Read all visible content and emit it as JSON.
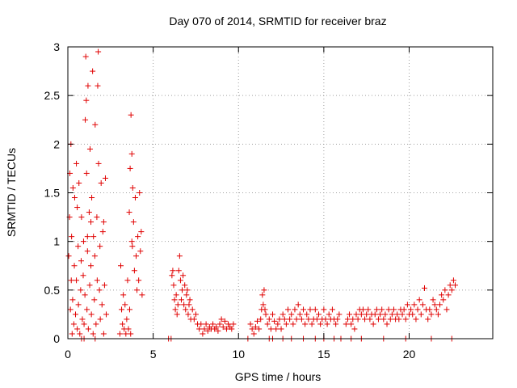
{
  "chart_data": {
    "type": "scatter",
    "title": "Day 070 of 2014, SRMTID for receiver braz",
    "xlabel": "GPS time / hours",
    "ylabel": "SRMTID / TECUs",
    "xlim": [
      0,
      24.9
    ],
    "ylim": [
      0,
      3
    ],
    "xticks": [
      0,
      5,
      10,
      15,
      20
    ],
    "yticks": [
      0,
      0.5,
      1,
      1.5,
      2,
      2.5,
      3
    ],
    "grid": true,
    "marker": "plus",
    "color": "#e00000",
    "series": [
      {
        "name": "SRMTID",
        "points": [
          [
            0.05,
            0.85
          ],
          [
            0.1,
            1.25
          ],
          [
            0.12,
            1.7
          ],
          [
            0.15,
            0.3
          ],
          [
            0.18,
            2.0
          ],
          [
            0.2,
            0.6
          ],
          [
            0.22,
            1.05
          ],
          [
            0.25,
            0.05
          ],
          [
            0.28,
            0.4
          ],
          [
            0.3,
            1.55
          ],
          [
            0.35,
            0.15
          ],
          [
            0.38,
            0.75
          ],
          [
            0.4,
            1.45
          ],
          [
            0.45,
            0.25
          ],
          [
            0.5,
            0.6
          ],
          [
            0.5,
            1.8
          ],
          [
            0.55,
            0.1
          ],
          [
            0.6,
            0.95
          ],
          [
            0.62,
            0.35
          ],
          [
            0.65,
            1.6
          ],
          [
            0.7,
            0.05
          ],
          [
            0.75,
            0.5
          ],
          [
            0.78,
            0.8
          ],
          [
            0.8,
            1.25
          ],
          [
            0.85,
            0.2
          ],
          [
            0.9,
            0.65
          ],
          [
            0.92,
            1.0
          ],
          [
            0.95,
            0.15
          ],
          [
            1.0,
            0.45
          ],
          [
            1.02,
            2.25
          ],
          [
            1.05,
            2.9
          ],
          [
            1.08,
            2.45
          ],
          [
            1.1,
            1.7
          ],
          [
            1.12,
            0.3
          ],
          [
            1.15,
            0.9
          ],
          [
            1.18,
            2.6
          ],
          [
            1.2,
            0.1
          ],
          [
            1.25,
            1.3
          ],
          [
            1.28,
            0.55
          ],
          [
            1.3,
            1.95
          ],
          [
            1.35,
            0.75
          ],
          [
            1.38,
            0.25
          ],
          [
            1.4,
            1.45
          ],
          [
            1.45,
            2.75
          ],
          [
            1.48,
            0.05
          ],
          [
            1.5,
            1.05
          ],
          [
            1.55,
            0.4
          ],
          [
            1.58,
            0.85
          ],
          [
            1.6,
            2.2
          ],
          [
            1.65,
            0.15
          ],
          [
            1.7,
            1.25
          ],
          [
            1.72,
            0.6
          ],
          [
            1.75,
            2.6
          ],
          [
            1.78,
            2.95
          ],
          [
            1.8,
            1.8
          ],
          [
            1.85,
            0.5
          ],
          [
            1.88,
            0.95
          ],
          [
            1.9,
            0.2
          ],
          [
            1.95,
            1.6
          ],
          [
            2.0,
            0.35
          ],
          [
            2.05,
            1.1
          ],
          [
            2.1,
            0.05
          ],
          [
            2.15,
            0.55
          ],
          [
            2.2,
            1.65
          ],
          [
            2.25,
            0.25
          ],
          [
            3.05,
            0.05
          ],
          [
            3.1,
            0.75
          ],
          [
            3.15,
            0.3
          ],
          [
            3.2,
            0.15
          ],
          [
            3.25,
            0.45
          ],
          [
            3.3,
            0.1
          ],
          [
            3.35,
            0.35
          ],
          [
            3.4,
            0.05
          ],
          [
            3.45,
            0.2
          ],
          [
            3.5,
            0.6
          ],
          [
            3.55,
            0.1
          ],
          [
            3.6,
            1.3
          ],
          [
            3.62,
            0.3
          ],
          [
            3.65,
            1.75
          ],
          [
            3.68,
            0.05
          ],
          [
            3.7,
            2.3
          ],
          [
            3.75,
            1.9
          ],
          [
            3.78,
            0.95
          ],
          [
            3.8,
            1.55
          ],
          [
            3.85,
            1.2
          ],
          [
            3.9,
            0.7
          ],
          [
            3.95,
            1.45
          ],
          [
            4.0,
            0.85
          ],
          [
            4.05,
            0.5
          ],
          [
            4.1,
            1.05
          ],
          [
            4.15,
            0.6
          ],
          [
            4.2,
            1.5
          ],
          [
            4.25,
            0.9
          ],
          [
            4.3,
            1.1
          ],
          [
            4.35,
            0.45
          ],
          [
            5.9,
            0.0
          ],
          [
            6.05,
            0.0
          ],
          [
            6.1,
            0.65
          ],
          [
            6.15,
            0.7
          ],
          [
            6.2,
            0.55
          ],
          [
            6.25,
            0.4
          ],
          [
            6.3,
            0.3
          ],
          [
            6.35,
            0.45
          ],
          [
            6.4,
            0.25
          ],
          [
            6.45,
            0.35
          ],
          [
            6.5,
            0.7
          ],
          [
            6.55,
            0.85
          ],
          [
            6.6,
            0.6
          ],
          [
            6.65,
            0.4
          ],
          [
            6.7,
            0.5
          ],
          [
            6.75,
            0.65
          ],
          [
            6.8,
            0.35
          ],
          [
            6.85,
            0.55
          ],
          [
            6.9,
            0.3
          ],
          [
            6.95,
            0.45
          ],
          [
            7.0,
            0.5
          ],
          [
            7.05,
            0.25
          ],
          [
            7.1,
            0.35
          ],
          [
            7.15,
            0.4
          ],
          [
            7.2,
            0.2
          ],
          [
            7.3,
            0.3
          ],
          [
            7.4,
            0.2
          ],
          [
            7.5,
            0.25
          ],
          [
            7.6,
            0.15
          ],
          [
            7.7,
            0.1
          ],
          [
            7.8,
            0.15
          ],
          [
            7.9,
            0.05
          ],
          [
            8.0,
            0.1
          ],
          [
            8.1,
            0.15
          ],
          [
            8.2,
            0.08
          ],
          [
            8.3,
            0.12
          ],
          [
            8.4,
            0.1
          ],
          [
            8.5,
            0.15
          ],
          [
            8.6,
            0.1
          ],
          [
            8.7,
            0.12
          ],
          [
            8.8,
            0.08
          ],
          [
            8.9,
            0.15
          ],
          [
            9.0,
            0.2
          ],
          [
            9.1,
            0.12
          ],
          [
            9.2,
            0.18
          ],
          [
            9.3,
            0.1
          ],
          [
            9.4,
            0.15
          ],
          [
            9.5,
            0.12
          ],
          [
            9.6,
            0.1
          ],
          [
            9.7,
            0.15
          ],
          [
            10.55,
            0.0
          ],
          [
            10.7,
            0.15
          ],
          [
            10.8,
            0.1
          ],
          [
            10.9,
            0.05
          ],
          [
            11.0,
            0.12
          ],
          [
            11.1,
            0.18
          ],
          [
            11.2,
            0.1
          ],
          [
            11.3,
            0.2
          ],
          [
            11.35,
            0.3
          ],
          [
            11.4,
            0.45
          ],
          [
            11.45,
            0.35
          ],
          [
            11.5,
            0.5
          ],
          [
            11.55,
            0.3
          ],
          [
            11.6,
            0.25
          ],
          [
            11.7,
            0.15
          ],
          [
            11.8,
            0.2
          ],
          [
            11.9,
            0.1
          ],
          [
            12.0,
            0.25
          ],
          [
            12.1,
            0.18
          ],
          [
            12.2,
            0.1
          ],
          [
            12.3,
            0.15
          ],
          [
            12.4,
            0.2
          ],
          [
            12.5,
            0.1
          ],
          [
            12.6,
            0.25
          ],
          [
            12.7,
            0.2
          ],
          [
            12.8,
            0.15
          ],
          [
            12.9,
            0.3
          ],
          [
            13.0,
            0.2
          ],
          [
            13.1,
            0.25
          ],
          [
            13.2,
            0.15
          ],
          [
            13.3,
            0.3
          ],
          [
            13.4,
            0.2
          ],
          [
            13.5,
            0.35
          ],
          [
            13.6,
            0.25
          ],
          [
            13.7,
            0.2
          ],
          [
            13.8,
            0.3
          ],
          [
            13.9,
            0.15
          ],
          [
            14.0,
            0.25
          ],
          [
            14.1,
            0.2
          ],
          [
            14.2,
            0.3
          ],
          [
            14.3,
            0.15
          ],
          [
            14.4,
            0.2
          ],
          [
            14.5,
            0.3
          ],
          [
            14.6,
            0.2
          ],
          [
            14.7,
            0.25
          ],
          [
            14.8,
            0.15
          ],
          [
            14.9,
            0.2
          ],
          [
            15.0,
            0.3
          ],
          [
            15.1,
            0.2
          ],
          [
            15.2,
            0.15
          ],
          [
            15.3,
            0.25
          ],
          [
            15.4,
            0.2
          ],
          [
            15.5,
            0.3
          ],
          [
            15.6,
            0.2
          ],
          [
            15.7,
            0.15
          ],
          [
            15.8,
            0.2
          ],
          [
            15.9,
            0.25
          ],
          [
            16.3,
            0.15
          ],
          [
            16.4,
            0.2
          ],
          [
            16.5,
            0.25
          ],
          [
            16.6,
            0.15
          ],
          [
            16.7,
            0.2
          ],
          [
            16.8,
            0.1
          ],
          [
            16.9,
            0.25
          ],
          [
            17.0,
            0.2
          ],
          [
            17.1,
            0.3
          ],
          [
            17.2,
            0.25
          ],
          [
            17.3,
            0.3
          ],
          [
            17.4,
            0.2
          ],
          [
            17.5,
            0.25
          ],
          [
            17.6,
            0.3
          ],
          [
            17.7,
            0.2
          ],
          [
            17.8,
            0.25
          ],
          [
            17.9,
            0.15
          ],
          [
            18.0,
            0.25
          ],
          [
            18.1,
            0.3
          ],
          [
            18.2,
            0.2
          ],
          [
            18.3,
            0.25
          ],
          [
            18.4,
            0.3
          ],
          [
            18.5,
            0.2
          ],
          [
            18.6,
            0.25
          ],
          [
            18.7,
            0.15
          ],
          [
            18.8,
            0.3
          ],
          [
            18.9,
            0.2
          ],
          [
            19.0,
            0.25
          ],
          [
            19.1,
            0.3
          ],
          [
            19.2,
            0.2
          ],
          [
            19.3,
            0.25
          ],
          [
            19.4,
            0.2
          ],
          [
            19.5,
            0.3
          ],
          [
            19.6,
            0.25
          ],
          [
            19.7,
            0.3
          ],
          [
            19.8,
            0.2
          ],
          [
            19.9,
            0.35
          ],
          [
            20.0,
            0.25
          ],
          [
            20.1,
            0.3
          ],
          [
            20.2,
            0.25
          ],
          [
            20.3,
            0.35
          ],
          [
            20.4,
            0.2
          ],
          [
            20.5,
            0.3
          ],
          [
            20.6,
            0.4
          ],
          [
            20.7,
            0.25
          ],
          [
            20.8,
            0.35
          ],
          [
            20.9,
            0.52
          ],
          [
            21.0,
            0.3
          ],
          [
            21.1,
            0.2
          ],
          [
            21.2,
            0.3
          ],
          [
            21.3,
            0.25
          ],
          [
            21.4,
            0.4
          ],
          [
            21.5,
            0.35
          ],
          [
            21.6,
            0.3
          ],
          [
            21.7,
            0.25
          ],
          [
            21.8,
            0.35
          ],
          [
            21.9,
            0.45
          ],
          [
            22.0,
            0.4
          ],
          [
            22.1,
            0.5
          ],
          [
            22.2,
            0.3
          ],
          [
            22.3,
            0.45
          ],
          [
            22.4,
            0.55
          ],
          [
            22.5,
            0.5
          ],
          [
            22.6,
            0.6
          ],
          [
            22.7,
            0.55
          ],
          [
            11.8,
            0.0
          ],
          [
            12.0,
            0.0
          ],
          [
            12.6,
            0.0
          ],
          [
            13.1,
            0.0
          ],
          [
            13.8,
            0.0
          ],
          [
            14.5,
            0.0
          ],
          [
            15.0,
            0.0
          ],
          [
            15.6,
            0.0
          ],
          [
            16.0,
            0.0
          ],
          [
            16.6,
            0.0
          ],
          [
            17.2,
            0.0
          ],
          [
            18.5,
            0.0
          ],
          [
            19.8,
            0.0
          ],
          [
            21.3,
            0.0
          ],
          [
            22.5,
            0.0
          ],
          [
            1.15,
            1.05
          ],
          [
            1.35,
            1.2
          ],
          [
            0.55,
            1.35
          ],
          [
            2.1,
            1.2
          ],
          [
            3.75,
            1.0
          ],
          [
            0.8,
            0.0
          ],
          [
            1.6,
            0.0
          ],
          [
            0.95,
            0.0
          ]
        ]
      }
    ]
  }
}
